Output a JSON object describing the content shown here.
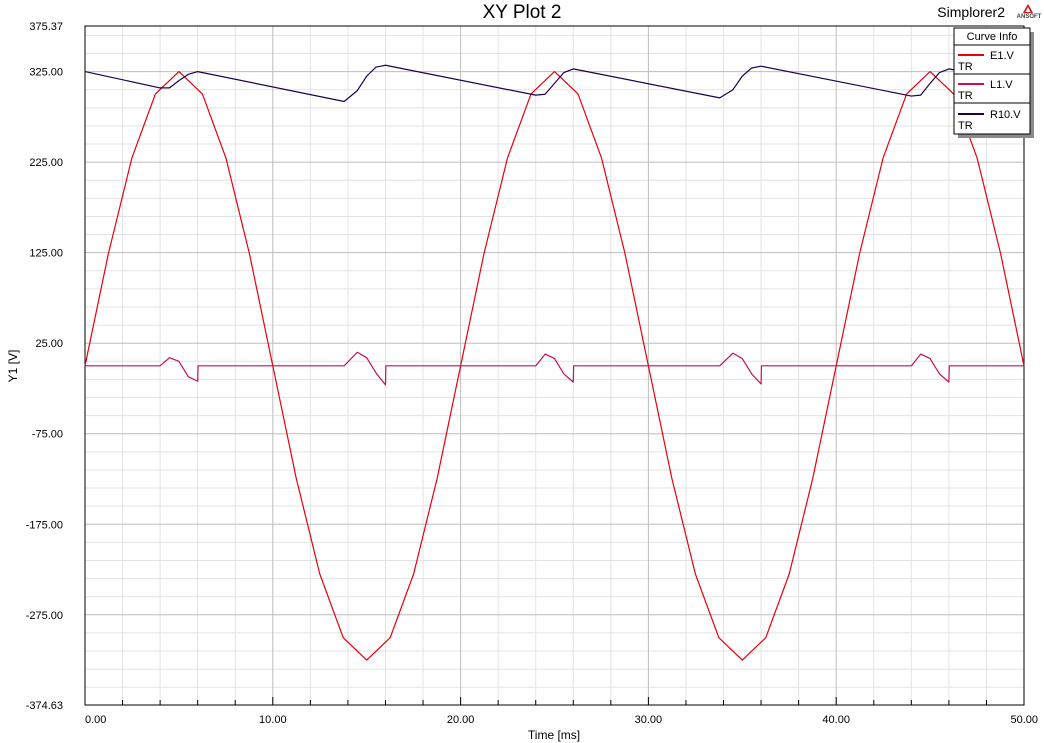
{
  "title": "XY Plot 2",
  "app_name": "Simplorer2",
  "logo_text": "ANSOFT",
  "chart_data": {
    "type": "line",
    "xlabel": "Time [ms]",
    "ylabel": "Y1 [V]",
    "xlim": [
      0,
      50
    ],
    "ylim": [
      -374.63,
      375.37
    ],
    "x_ticks": [
      {
        "value": 0,
        "label": "0.00"
      },
      {
        "value": 10,
        "label": "10.00"
      },
      {
        "value": 20,
        "label": "20.00"
      },
      {
        "value": 30,
        "label": "30.00"
      },
      {
        "value": 40,
        "label": "40.00"
      },
      {
        "value": 50,
        "label": "50.00"
      }
    ],
    "y_ticks": [
      {
        "value": 375.37,
        "label": "375.37"
      },
      {
        "value": 325,
        "label": "325.00"
      },
      {
        "value": 225,
        "label": "225.00"
      },
      {
        "value": 125,
        "label": "125.00"
      },
      {
        "value": 25,
        "label": "25.00"
      },
      {
        "value": -75,
        "label": "-75.00"
      },
      {
        "value": -175,
        "label": "-175.00"
      },
      {
        "value": -275,
        "label": "-275.00"
      },
      {
        "value": -374.63,
        "label": "-374.63"
      }
    ],
    "grid": true,
    "legend": {
      "title": "Curve Info",
      "placement": "top-right",
      "entries": [
        {
          "name": "E1.V",
          "sub": "TR",
          "color": "#e8000b"
        },
        {
          "name": "L1.V",
          "sub": "TR",
          "color": "#c01060"
        },
        {
          "name": "R10.V",
          "sub": "TR",
          "color": "#20004c"
        }
      ]
    },
    "series": [
      {
        "name": "E1.V",
        "color": "#e8000b",
        "x": [
          0,
          1.25,
          2.5,
          3.75,
          5,
          6.25,
          7.5,
          8.75,
          10,
          11.25,
          12.5,
          13.75,
          15,
          16.25,
          17.5,
          18.75,
          20,
          21.25,
          22.5,
          23.75,
          25,
          26.25,
          27.5,
          28.75,
          30,
          31.25,
          32.5,
          33.75,
          35,
          36.25,
          37.5,
          38.75,
          40,
          41.25,
          42.5,
          43.75,
          45,
          46.25,
          47.5,
          48.75,
          50
        ],
        "y": [
          0,
          124.4,
          229.8,
          300.3,
          325,
          300.3,
          229.8,
          124.4,
          0,
          -124.4,
          -229.8,
          -300.3,
          -325,
          -300.3,
          -229.8,
          -124.4,
          0,
          124.4,
          229.8,
          300.3,
          325,
          300.3,
          229.8,
          124.4,
          0,
          -124.4,
          -229.8,
          -300.3,
          -325,
          -300.3,
          -229.8,
          -124.4,
          0,
          124.4,
          229.8,
          300.3,
          325,
          300.3,
          229.8,
          124.4,
          0
        ]
      },
      {
        "name": "L1.V",
        "color": "#c01060",
        "x": [
          0,
          4,
          4.5,
          5,
          5.5,
          6,
          6.02,
          13.8,
          14.5,
          15,
          15.5,
          16,
          16.02,
          24,
          24.5,
          25,
          25.5,
          26,
          26.02,
          33.8,
          34.5,
          35,
          35.5,
          36,
          36.02,
          44,
          44.5,
          45,
          45.5,
          46,
          46.02,
          50
        ],
        "y": [
          0,
          0,
          9,
          5,
          -12,
          -17,
          0,
          0,
          15,
          9,
          -8,
          -21,
          0,
          0,
          13,
          8,
          -9,
          -18,
          0,
          0,
          14,
          8,
          -9,
          -20,
          0,
          0,
          13,
          8,
          -9,
          -18,
          0,
          0
        ]
      },
      {
        "name": "R10.V",
        "color": "#20004c",
        "x": [
          0,
          4,
          4.5,
          5,
          5.5,
          6,
          13.8,
          14.5,
          15,
          15.5,
          16,
          24,
          24.5,
          25,
          25.5,
          26,
          33.8,
          34.5,
          35,
          35.5,
          36,
          44,
          44.5,
          45,
          45.5,
          46,
          50
        ],
        "y": [
          325,
          307,
          307,
          315,
          322,
          325,
          292,
          304,
          320,
          330,
          332,
          299,
          300,
          312,
          324,
          328,
          296,
          305,
          320,
          329,
          331,
          298,
          299,
          312,
          324,
          328,
          312
        ]
      }
    ]
  }
}
